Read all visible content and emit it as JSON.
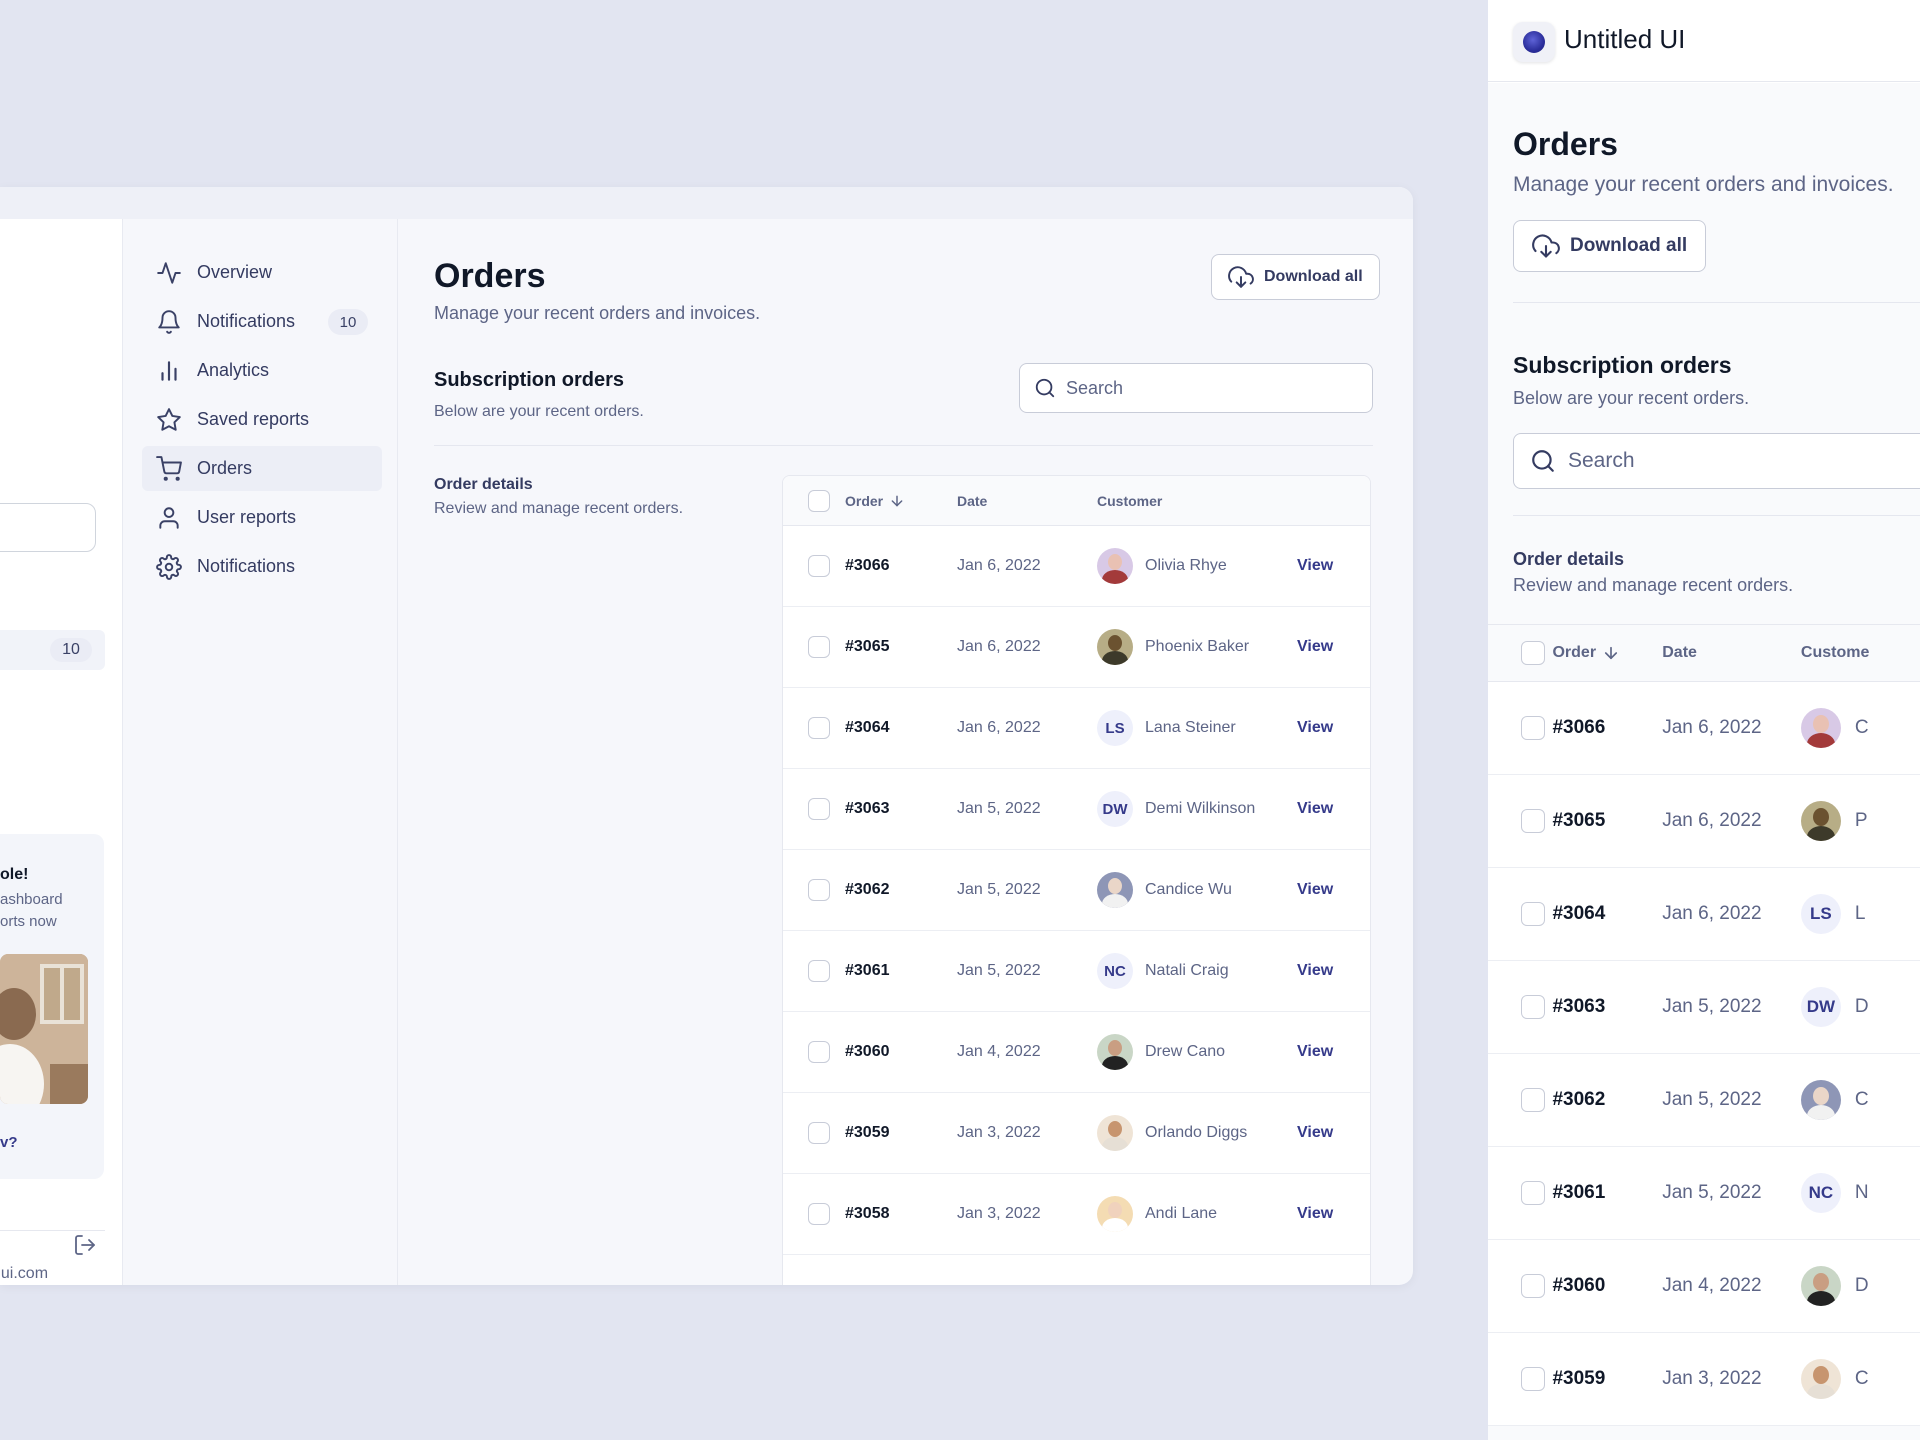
{
  "sidebar_partial": {
    "badge": "10",
    "promo_title": "ole!",
    "promo_line1": "ashboard",
    "promo_line2": "orts now",
    "promo_link": "v?",
    "email": "dui.com"
  },
  "sub_nav": [
    {
      "label": "Overview",
      "icon": "activity-icon"
    },
    {
      "label": "Notifications",
      "icon": "bell-icon",
      "badge": "10"
    },
    {
      "label": "Analytics",
      "icon": "bar-chart-icon"
    },
    {
      "label": "Saved reports",
      "icon": "star-icon"
    },
    {
      "label": "Orders",
      "icon": "cart-icon",
      "active": true
    },
    {
      "label": "User reports",
      "icon": "user-icon"
    },
    {
      "label": "Notifications",
      "icon": "gear-icon"
    }
  ],
  "page": {
    "title": "Orders",
    "subtitle": "Manage your recent orders and invoices.",
    "download_label": "Download all"
  },
  "subscription": {
    "title": "Subscription orders",
    "subtitle": "Below are your recent orders.",
    "search_placeholder": "Search"
  },
  "order_details": {
    "title": "Order details",
    "subtitle": "Review and manage recent orders."
  },
  "table": {
    "columns": {
      "order": "Order",
      "date": "Date",
      "customer": "Customer"
    },
    "view_label": "View",
    "rows": [
      {
        "order": "#3066",
        "date": "Jan 6, 2022",
        "customer": "Olivia Rhye",
        "avatar": "photo",
        "face": "#e9c1b3",
        "bg": "#d8c9e6",
        "body": "#a33a3a"
      },
      {
        "order": "#3065",
        "date": "Jan 6, 2022",
        "customer": "Phoenix Baker",
        "avatar": "photo",
        "face": "#6b5230",
        "bg": "#b7ad86",
        "body": "#3d3a2a"
      },
      {
        "order": "#3064",
        "date": "Jan 6, 2022",
        "customer": "Lana Steiner",
        "avatar": "initials",
        "initials": "LS"
      },
      {
        "order": "#3063",
        "date": "Jan 5, 2022",
        "customer": "Demi Wilkinson",
        "avatar": "initials",
        "initials": "DW"
      },
      {
        "order": "#3062",
        "date": "Jan 5, 2022",
        "customer": "Candice Wu",
        "avatar": "photo",
        "face": "#ead6c8",
        "bg": "#8e96b6",
        "body": "#f1f1f1"
      },
      {
        "order": "#3061",
        "date": "Jan 5, 2022",
        "customer": "Natali Craig",
        "avatar": "initials",
        "initials": "NC"
      },
      {
        "order": "#3060",
        "date": "Jan 4, 2022",
        "customer": "Drew Cano",
        "avatar": "photo",
        "face": "#c99e82",
        "bg": "#c9d6c6",
        "body": "#222222"
      },
      {
        "order": "#3059",
        "date": "Jan 3, 2022",
        "customer": "Orlando Diggs",
        "avatar": "photo",
        "face": "#c7956f",
        "bg": "#efe4d6",
        "body": "#e6dfd5"
      },
      {
        "order": "#3058",
        "date": "Jan 3, 2022",
        "customer": "Andi Lane",
        "avatar": "photo",
        "face": "#f0d2bd",
        "bg": "#f4dcb3",
        "body": "#ffffff"
      }
    ]
  },
  "mobile": {
    "brand": "Untitled UI",
    "title": "Orders",
    "subtitle": "Manage your recent orders and invoices.",
    "download_label": "Download all",
    "section_title": "Subscription orders",
    "section_subtitle": "Below are your recent orders.",
    "search_placeholder": "Search",
    "details_title": "Order details",
    "details_subtitle": "Review and manage recent orders.",
    "columns": {
      "order": "Order",
      "date": "Date",
      "customer": "Custome"
    },
    "rows": [
      {
        "order": "#3066",
        "date": "Jan 6, 2022",
        "cust_initial": "C",
        "avatar": "photo",
        "face": "#e9c1b3",
        "bg": "#d8c9e6",
        "body": "#a33a3a"
      },
      {
        "order": "#3065",
        "date": "Jan 6, 2022",
        "cust_initial": "P",
        "avatar": "photo",
        "face": "#6b5230",
        "bg": "#b7ad86",
        "body": "#3d3a2a"
      },
      {
        "order": "#3064",
        "date": "Jan 6, 2022",
        "cust_initial": "L",
        "avatar": "initials",
        "initials": "LS"
      },
      {
        "order": "#3063",
        "date": "Jan 5, 2022",
        "cust_initial": "D",
        "avatar": "initials",
        "initials": "DW"
      },
      {
        "order": "#3062",
        "date": "Jan 5, 2022",
        "cust_initial": "C",
        "avatar": "photo",
        "face": "#ead6c8",
        "bg": "#8e96b6",
        "body": "#f1f1f1"
      },
      {
        "order": "#3061",
        "date": "Jan 5, 2022",
        "cust_initial": "N",
        "avatar": "initials",
        "initials": "NC"
      },
      {
        "order": "#3060",
        "date": "Jan 4, 2022",
        "cust_initial": "D",
        "avatar": "photo",
        "face": "#c99e82",
        "bg": "#c9d6c6",
        "body": "#222222"
      },
      {
        "order": "#3059",
        "date": "Jan 3, 2022",
        "cust_initial": "C",
        "avatar": "photo",
        "face": "#c7956f",
        "bg": "#efe4d6",
        "body": "#e6dfd5"
      }
    ]
  },
  "colors": {
    "page_bg": "#e2e5f1",
    "accent": "#353a8a",
    "text_primary": "#101828",
    "text_secondary": "#5d6586"
  }
}
